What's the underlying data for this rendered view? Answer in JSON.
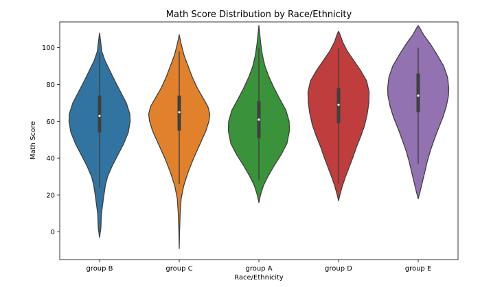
{
  "chart_data": {
    "type": "violin",
    "title": "Math Score Distribution by Race/Ethnicity",
    "xlabel": "Race/Ethnicity",
    "ylabel": "Math Score",
    "ylim": [
      -15,
      114
    ],
    "yticks": [
      0,
      20,
      40,
      60,
      80,
      100
    ],
    "categories": [
      "group B",
      "group C",
      "group A",
      "group D",
      "group E"
    ],
    "grid": false,
    "legend": "none",
    "series": [
      {
        "category": "group B",
        "color": "#3274a1",
        "min": 8,
        "q1": 54,
        "median": 63,
        "q3": 74,
        "max": 97,
        "whisker_low": 24,
        "whisker_high": 97,
        "kde_low": -3,
        "kde_high": 108,
        "density": [
          [
            -3,
            0.0
          ],
          [
            2,
            0.04
          ],
          [
            10,
            0.06
          ],
          [
            18,
            0.12
          ],
          [
            25,
            0.18
          ],
          [
            30,
            0.25
          ],
          [
            36,
            0.4
          ],
          [
            42,
            0.58
          ],
          [
            48,
            0.76
          ],
          [
            54,
            0.9
          ],
          [
            60,
            0.96
          ],
          [
            64,
            0.95
          ],
          [
            70,
            0.84
          ],
          [
            76,
            0.66
          ],
          [
            82,
            0.48
          ],
          [
            88,
            0.31
          ],
          [
            93,
            0.17
          ],
          [
            98,
            0.07
          ],
          [
            104,
            0.03
          ],
          [
            108,
            0.0
          ]
        ]
      },
      {
        "category": "group C",
        "color": "#e1812c",
        "min": 0,
        "q1": 55,
        "median": 65,
        "q3": 74,
        "max": 98,
        "whisker_low": 26,
        "whisker_high": 98,
        "kde_low": -9,
        "kde_high": 107,
        "density": [
          [
            -9,
            0.0
          ],
          [
            0,
            0.01
          ],
          [
            10,
            0.03
          ],
          [
            18,
            0.06
          ],
          [
            25,
            0.14
          ],
          [
            32,
            0.27
          ],
          [
            40,
            0.45
          ],
          [
            48,
            0.66
          ],
          [
            55,
            0.84
          ],
          [
            60,
            0.93
          ],
          [
            64,
            0.96
          ],
          [
            68,
            0.9
          ],
          [
            72,
            0.77
          ],
          [
            78,
            0.57
          ],
          [
            84,
            0.41
          ],
          [
            90,
            0.28
          ],
          [
            96,
            0.15
          ],
          [
            102,
            0.06
          ],
          [
            107,
            0.0
          ]
        ]
      },
      {
        "category": "group A",
        "color": "#3a923a",
        "min": 28,
        "q1": 51,
        "median": 61,
        "q3": 71,
        "max": 100,
        "whisker_low": 28,
        "whisker_high": 100,
        "kde_low": 16,
        "kde_high": 112,
        "density": [
          [
            16,
            0.0
          ],
          [
            20,
            0.05
          ],
          [
            25,
            0.14
          ],
          [
            30,
            0.28
          ],
          [
            36,
            0.48
          ],
          [
            42,
            0.7
          ],
          [
            48,
            0.88
          ],
          [
            55,
            0.96
          ],
          [
            60,
            0.95
          ],
          [
            66,
            0.85
          ],
          [
            72,
            0.66
          ],
          [
            78,
            0.48
          ],
          [
            84,
            0.32
          ],
          [
            90,
            0.19
          ],
          [
            96,
            0.11
          ],
          [
            102,
            0.06
          ],
          [
            107,
            0.03
          ],
          [
            112,
            0.0
          ]
        ]
      },
      {
        "category": "group D",
        "color": "#c03d3e",
        "min": 26,
        "q1": 59,
        "median": 69,
        "q3": 78,
        "max": 100,
        "whisker_low": 26,
        "whisker_high": 100,
        "kde_low": 17,
        "kde_high": 109,
        "density": [
          [
            17,
            0.0
          ],
          [
            20,
            0.04
          ],
          [
            25,
            0.12
          ],
          [
            30,
            0.22
          ],
          [
            35,
            0.33
          ],
          [
            40,
            0.44
          ],
          [
            46,
            0.56
          ],
          [
            52,
            0.7
          ],
          [
            58,
            0.82
          ],
          [
            64,
            0.9
          ],
          [
            70,
            0.95
          ],
          [
            76,
            0.96
          ],
          [
            82,
            0.88
          ],
          [
            88,
            0.68
          ],
          [
            93,
            0.48
          ],
          [
            98,
            0.28
          ],
          [
            103,
            0.13
          ],
          [
            107,
            0.05
          ],
          [
            109,
            0.0
          ]
        ]
      },
      {
        "category": "group E",
        "color": "#9372b2",
        "min": 30,
        "q1": 65,
        "median": 74,
        "q3": 86,
        "max": 100,
        "whisker_low": 37,
        "whisker_high": 100,
        "kde_low": 18,
        "kde_high": 112,
        "density": [
          [
            18,
            0.0
          ],
          [
            22,
            0.06
          ],
          [
            27,
            0.13
          ],
          [
            32,
            0.2
          ],
          [
            38,
            0.28
          ],
          [
            44,
            0.38
          ],
          [
            50,
            0.5
          ],
          [
            56,
            0.63
          ],
          [
            62,
            0.77
          ],
          [
            68,
            0.88
          ],
          [
            74,
            0.95
          ],
          [
            78,
            0.96
          ],
          [
            84,
            0.92
          ],
          [
            90,
            0.8
          ],
          [
            96,
            0.6
          ],
          [
            102,
            0.38
          ],
          [
            107,
            0.17
          ],
          [
            111,
            0.04
          ],
          [
            112,
            0.0
          ]
        ]
      }
    ]
  }
}
